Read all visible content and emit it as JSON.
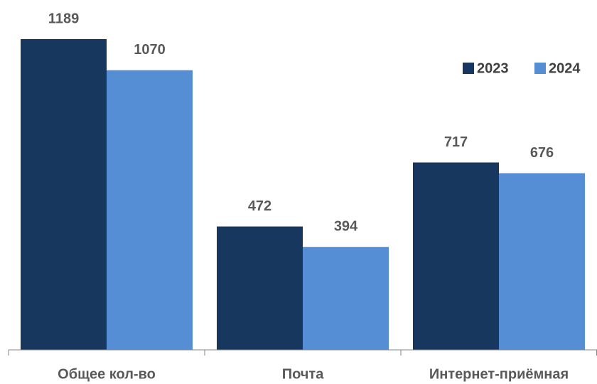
{
  "chart_data": {
    "type": "bar",
    "categories": [
      "Общее кол-во",
      "Почта",
      "Интернет-приёмная"
    ],
    "series": [
      {
        "name": "2023",
        "color": "#17375e",
        "values": [
          1189,
          472,
          717
        ]
      },
      {
        "name": "2024",
        "color": "#558ed5",
        "values": [
          1070,
          394,
          676
        ]
      }
    ],
    "legend": "upper right"
  }
}
